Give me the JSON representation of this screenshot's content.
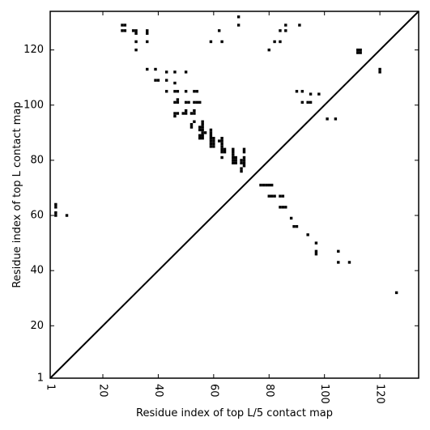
{
  "chart_data": {
    "type": "scatter",
    "title": "",
    "xlabel": "Residue index of top L/5 contact map",
    "ylabel": "Residue index of top L contact map",
    "xlim": [
      1,
      134
    ],
    "ylim": [
      1,
      134
    ],
    "x_ticks": [
      {
        "value": 1,
        "label": "1"
      },
      {
        "value": 20,
        "label": "20"
      },
      {
        "value": 40,
        "label": "40"
      },
      {
        "value": 60,
        "label": "60"
      },
      {
        "value": 80,
        "label": "80"
      },
      {
        "value": 100,
        "label": "100"
      },
      {
        "value": 120,
        "label": "120"
      }
    ],
    "y_ticks": [
      {
        "value": 1,
        "label": "1"
      },
      {
        "value": 20,
        "label": "20"
      },
      {
        "value": 40,
        "label": "40"
      },
      {
        "value": 60,
        "label": "60"
      },
      {
        "value": 80,
        "label": "80"
      },
      {
        "value": 100,
        "label": "100"
      },
      {
        "value": 120,
        "label": "120"
      }
    ],
    "x_tick_rotation": 270,
    "diagonal": true,
    "grid": false,
    "marker": "square",
    "marker_color": "#000000",
    "series": [
      {
        "name": "",
        "description": "top L contacts (upper triangle)",
        "points": [
          [
            27,
            127
          ],
          [
            28,
            127
          ],
          [
            27,
            129
          ],
          [
            28,
            129
          ],
          [
            31,
            127
          ],
          [
            32,
            127
          ],
          [
            32,
            126
          ],
          [
            32,
            123
          ],
          [
            32,
            120
          ],
          [
            36,
            127
          ],
          [
            36,
            126
          ],
          [
            36,
            123
          ],
          [
            36,
            113
          ],
          [
            39,
            113
          ],
          [
            39,
            109
          ],
          [
            40,
            109
          ],
          [
            43,
            112
          ],
          [
            43,
            109
          ],
          [
            43,
            105
          ],
          [
            46,
            112
          ],
          [
            46,
            108
          ],
          [
            46,
            105
          ],
          [
            47,
            105
          ],
          [
            50,
            112
          ],
          [
            50,
            105
          ],
          [
            53,
            105
          ],
          [
            54,
            105
          ],
          [
            46,
            101
          ],
          [
            47,
            101
          ],
          [
            47,
            102
          ],
          [
            50,
            101
          ],
          [
            51,
            101
          ],
          [
            53,
            101
          ],
          [
            54,
            101
          ],
          [
            55,
            101
          ],
          [
            46,
            97
          ],
          [
            47,
            97
          ],
          [
            46,
            96
          ],
          [
            49,
            97
          ],
          [
            50,
            97
          ],
          [
            50,
            98
          ],
          [
            52,
            97
          ],
          [
            53,
            97
          ],
          [
            53,
            98
          ],
          [
            52,
            93
          ],
          [
            52,
            92
          ],
          [
            53,
            94
          ],
          [
            55,
            92
          ],
          [
            55,
            91
          ],
          [
            56,
            94
          ],
          [
            56,
            93
          ],
          [
            56,
            92
          ],
          [
            56,
            91
          ],
          [
            56,
            90
          ],
          [
            56,
            89
          ],
          [
            55,
            89
          ],
          [
            56,
            88
          ],
          [
            57,
            90
          ],
          [
            55,
            88
          ],
          [
            59,
            91
          ],
          [
            59,
            90
          ],
          [
            59,
            89
          ],
          [
            59,
            88
          ],
          [
            59,
            87
          ],
          [
            59,
            86
          ],
          [
            59,
            85
          ],
          [
            60,
            88
          ],
          [
            60,
            87
          ],
          [
            60,
            86
          ],
          [
            60,
            85
          ],
          [
            62,
            87
          ],
          [
            63,
            88
          ],
          [
            63,
            87
          ],
          [
            63,
            86
          ],
          [
            63,
            85
          ],
          [
            63,
            84
          ],
          [
            63,
            83
          ],
          [
            64,
            84
          ],
          [
            64,
            83
          ],
          [
            63,
            81
          ],
          [
            67,
            84
          ],
          [
            67,
            83
          ],
          [
            67,
            82
          ],
          [
            67,
            81
          ],
          [
            67,
            80
          ],
          [
            67,
            79
          ],
          [
            68,
            81
          ],
          [
            68,
            80
          ],
          [
            68,
            79
          ],
          [
            70,
            80
          ],
          [
            70,
            79
          ],
          [
            70,
            77
          ],
          [
            70,
            76
          ],
          [
            71,
            84
          ],
          [
            71,
            83
          ],
          [
            71,
            81
          ],
          [
            71,
            80
          ],
          [
            71,
            79
          ],
          [
            71,
            78
          ],
          [
            59,
            123
          ],
          [
            62,
            127
          ],
          [
            63,
            123
          ],
          [
            69,
            132
          ],
          [
            69,
            129
          ],
          [
            80,
            120
          ],
          [
            82,
            123
          ],
          [
            84,
            127
          ],
          [
            84,
            123
          ],
          [
            86,
            129
          ],
          [
            86,
            127
          ],
          [
            91,
            129
          ],
          [
            90,
            105
          ],
          [
            92,
            105
          ],
          [
            92,
            101
          ],
          [
            94,
            101
          ],
          [
            95,
            101
          ],
          [
            95,
            104
          ],
          [
            98,
            104
          ],
          [
            101,
            95
          ],
          [
            104,
            95
          ],
          [
            112,
            120
          ],
          [
            113,
            120
          ],
          [
            112,
            119
          ],
          [
            113,
            119
          ],
          [
            120,
            113
          ],
          [
            120,
            112
          ],
          [
            77,
            71
          ],
          [
            78,
            71
          ],
          [
            79,
            71
          ],
          [
            80,
            71
          ],
          [
            81,
            71
          ],
          [
            80,
            67
          ],
          [
            81,
            67
          ],
          [
            82,
            67
          ],
          [
            84,
            67
          ],
          [
            85,
            67
          ],
          [
            84,
            63
          ],
          [
            85,
            63
          ],
          [
            86,
            63
          ],
          [
            88,
            59
          ],
          [
            89,
            56
          ],
          [
            90,
            56
          ],
          [
            94,
            53
          ],
          [
            97,
            50
          ],
          [
            97,
            46
          ],
          [
            97,
            47
          ],
          [
            105,
            47
          ],
          [
            105,
            43
          ],
          [
            109,
            43
          ],
          [
            126,
            32
          ],
          [
            3,
            64
          ],
          [
            3,
            63
          ],
          [
            3,
            61
          ],
          [
            3,
            60
          ],
          [
            7,
            60
          ]
        ]
      }
    ]
  }
}
